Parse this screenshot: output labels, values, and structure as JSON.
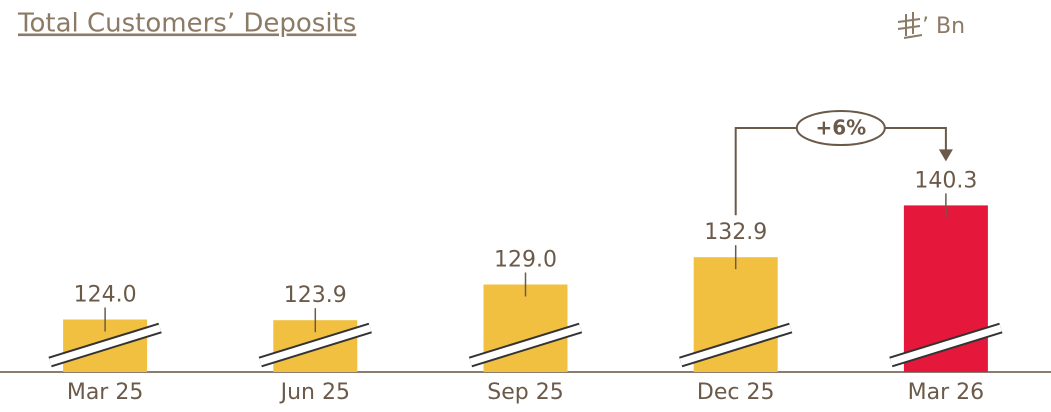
{
  "chart_data": {
    "type": "bar",
    "title": "Total Customers’ Deposits",
    "unit": "’ Bn",
    "categories": [
      "Mar 25",
      "Jun 25",
      "Sep 25",
      "Dec 25",
      "Mar 26"
    ],
    "values": [
      124.0,
      123.9,
      129.0,
      132.9,
      140.3
    ],
    "value_labels": [
      "124.0",
      "123.9",
      "129.0",
      "132.9",
      "140.3"
    ],
    "colors": [
      "#f2c040",
      "#f2c040",
      "#f2c040",
      "#f2c040",
      "#e5173b"
    ],
    "ylim": [
      116.5,
      150
    ],
    "annotation": "+6%"
  }
}
